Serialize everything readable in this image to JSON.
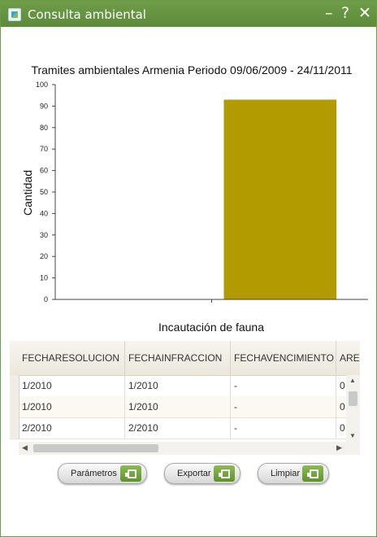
{
  "window": {
    "title": "Consulta ambiental",
    "controls": {
      "minimize": "–",
      "help": "?",
      "close": "✕"
    }
  },
  "chart_data": {
    "type": "bar",
    "title": "Tramites ambientales Armenia Periodo 09/06/2009 - 24/11/2011",
    "ylabel": "Cantidad",
    "xlabel": "",
    "categories": [
      "Incautación de fauna"
    ],
    "values": [
      93
    ],
    "ylim": [
      0,
      100
    ],
    "yticks": [
      0,
      10,
      20,
      30,
      40,
      50,
      60,
      70,
      80,
      90,
      100
    ],
    "bar_color": "#b29b00",
    "grid": false
  },
  "table": {
    "columns": [
      "FECHARESOLUCION",
      "FECHAINFRACCION",
      "FECHAVENCIMIENTO",
      "ARE"
    ],
    "rows": [
      [
        "1/2010",
        "1/2010",
        "-",
        "0"
      ],
      [
        "1/2010",
        "1/2010",
        "-",
        "0"
      ],
      [
        "2/2010",
        "2/2010",
        "-",
        "0"
      ]
    ]
  },
  "buttons": {
    "parametros": "Parámetros",
    "exportar": "Exportar",
    "limpiar": "Limpiar"
  },
  "colors": {
    "titlebar": "#64923f",
    "accent": "#6f9d49",
    "bar": "#b29b00"
  }
}
